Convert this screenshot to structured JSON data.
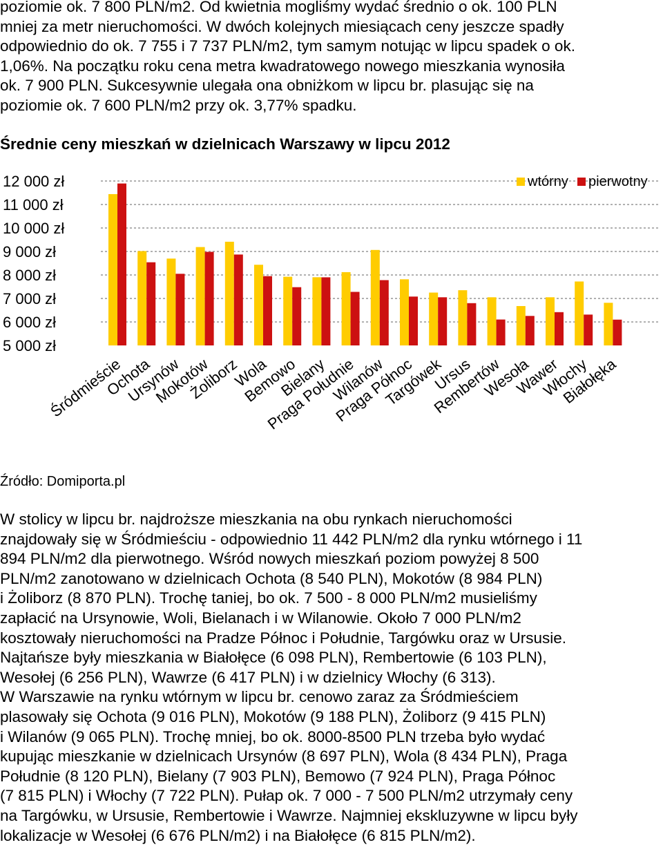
{
  "intro_lines": [
    "poziomie ok. 7 800 PLN/m2. Od kwietnia mogliśmy wydać średnio o ok. 100 PLN",
    "mniej za metr nieruchomości. W dwóch kolejnych miesiącach ceny jeszcze spadły",
    "odpowiednio do ok. 7 755 i 7 737 PLN/m2, tym samym notując w lipcu spadek o ok.",
    "1,06%. Na początku roku cena metra kwadratowego nowego mieszkania wynosiła",
    "ok. 7 900 PLN. Sukcesywnie ulegała ona obniżkom w lipcu br. plasując się na",
    "poziomie ok. 7 600 PLN/m2 przy ok. 3,77% spadku."
  ],
  "chart_title": "Średnie ceny mieszkań w dzielnicach Warszawy w lipcu 2012",
  "source": "Źródło: Domiporta.pl",
  "body_lines": [
    "W stolicy w lipcu br. najdroższe mieszkania na obu rynkach nieruchomości",
    "znajdowały się w Śródmieściu - odpowiednio 11 442 PLN/m2 dla rynku wtórnego i 11",
    "894 PLN/m2 dla pierwotnego. Wśród nowych mieszkań poziom powyżej 8 500",
    "PLN/m2 zanotowano w dzielnicach Ochota (8 540 PLN), Mokotów (8 984 PLN)",
    "i Żoliborz (8 870 PLN). Trochę taniej, bo ok. 7 500 - 8 000 PLN/m2 musieliśmy",
    "zapłacić na Ursynowie, Woli, Bielanach i w Wilanowie. Około 7 000 PLN/m2",
    "kosztowały nieruchomości na Pradze Północ i Południe, Targówku oraz w Ursusie.",
    "Najtańsze były mieszkania w Białołęce (6 098 PLN), Rembertowie (6 103 PLN),",
    "Wesołej (6 256 PLN), Wawrze (6 417 PLN) i w dzielnicy Włochy (6 313).",
    "W Warszawie na rynku wtórnym w lipcu br. cenowo zaraz za Śródmieściem",
    "plasowały się Ochota (9 016 PLN), Mokotów (9 188 PLN), Żoliborz (9 415 PLN)",
    "i Wilanów (9 065 PLN). Trochę mniej, bo ok. 8000-8500 PLN trzeba było wydać",
    "kupując mieszkanie w dzielnicach Ursynów (8 697 PLN), Wola (8 434 PLN), Praga",
    "Południe (8 120 PLN), Bielany (7 903 PLN), Bemowo (7 924 PLN), Praga Północ",
    "(7 815 PLN) i Włochy (7 722 PLN). Pułap ok. 7 000 - 7 500 PLN/m2 utrzymały ceny",
    "na Targówku, w Ursusie, Rembertowie i Wawrze. Najmniej ekskluzywne w lipcu były",
    "lokalizacje w Wesołej (6 676 PLN/m2) i na Białołęce (6 815 PLN/m2)."
  ],
  "chart_data": {
    "type": "bar",
    "title": "Średnie ceny mieszkań w dzielnicach Warszawy w lipcu 2012",
    "categories": [
      "Śródmieście",
      "Ochota",
      "Ursynów",
      "Mokotów",
      "Żoliborz",
      "Wola",
      "Bemowo",
      "Bielany",
      "Praga Południe",
      "Wilanów",
      "Praga Północ",
      "Targówek",
      "Ursus",
      "Rembertów",
      "Wesoła",
      "Wawer",
      "Włochy",
      "Białołęka"
    ],
    "series": [
      {
        "name": "wtórny",
        "color": "#ffcc00",
        "values": [
          11442,
          9016,
          8697,
          9188,
          9415,
          8434,
          7924,
          7903,
          8120,
          9065,
          7815,
          7250,
          7350,
          7050,
          6676,
          7050,
          7722,
          6815
        ]
      },
      {
        "name": "pierwotny",
        "color": "#cc1111",
        "values": [
          11894,
          8540,
          8050,
          8984,
          8870,
          7950,
          7480,
          7900,
          7280,
          7780,
          7080,
          7050,
          6800,
          6103,
          6256,
          6417,
          6313,
          6098
        ]
      }
    ],
    "yticks": [
      "5 000 zł",
      "6 000 zł",
      "7 000 zł",
      "8 000 zł",
      "9 000 zł",
      "10 000 zł",
      "11 000 zł",
      "12 000 zł"
    ],
    "ylim": [
      5000,
      12000
    ],
    "grid": true,
    "legend": "top-right"
  }
}
